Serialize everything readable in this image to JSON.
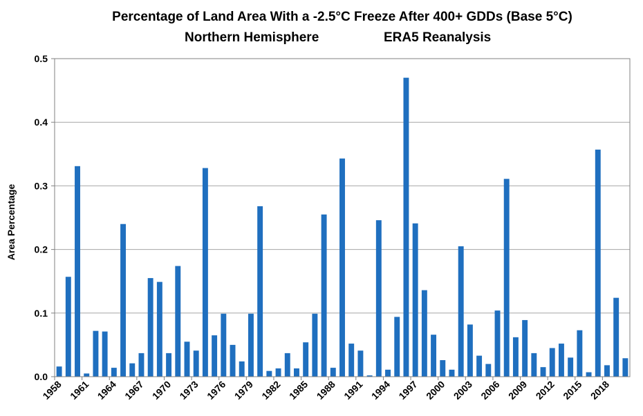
{
  "chart_data": {
    "type": "bar",
    "title": "Percentage of Land Area With a -2.5°C Freeze After 400+ GDDs (Base 5°C)",
    "subtitle_left": "Northern Hemisphere",
    "subtitle_right": "ERA5 Reanalysis",
    "xlabel": "",
    "ylabel": "Area Percentage",
    "ylim": [
      0,
      0.5
    ],
    "yticks": [
      "0.0",
      "0.1",
      "0.2",
      "0.3",
      "0.4",
      "0.5"
    ],
    "grid": true,
    "bar_color": "#1f6fbf",
    "x": [
      1958,
      1959,
      1960,
      1961,
      1962,
      1963,
      1964,
      1965,
      1966,
      1967,
      1968,
      1969,
      1970,
      1971,
      1972,
      1973,
      1974,
      1975,
      1976,
      1977,
      1978,
      1979,
      1980,
      1981,
      1982,
      1983,
      1984,
      1985,
      1986,
      1987,
      1988,
      1989,
      1990,
      1991,
      1992,
      1993,
      1994,
      1995,
      1996,
      1997,
      1998,
      1999,
      2000,
      2001,
      2002,
      2003,
      2004,
      2005,
      2006,
      2007,
      2008,
      2009,
      2010,
      2011,
      2012,
      2013,
      2014,
      2015,
      2016,
      2017,
      2018,
      2019,
      2020
    ],
    "xtick_labels": [
      "1958",
      "1961",
      "1964",
      "1967",
      "1970",
      "1973",
      "1976",
      "1979",
      "1982",
      "1985",
      "1988",
      "1991",
      "1994",
      "1997",
      "2000",
      "2003",
      "2006",
      "2009",
      "2012",
      "2015",
      "2018"
    ],
    "values": [
      0.016,
      0.157,
      0.331,
      0.005,
      0.072,
      0.071,
      0.014,
      0.24,
      0.021,
      0.037,
      0.155,
      0.149,
      0.037,
      0.174,
      0.055,
      0.041,
      0.328,
      0.065,
      0.099,
      0.05,
      0.024,
      0.099,
      0.268,
      0.009,
      0.013,
      0.037,
      0.013,
      0.054,
      0.099,
      0.255,
      0.014,
      0.343,
      0.052,
      0.041,
      0.002,
      0.246,
      0.011,
      0.094,
      0.47,
      0.241,
      0.136,
      0.066,
      0.026,
      0.011,
      0.205,
      0.082,
      0.033,
      0.02,
      0.104,
      0.311,
      0.062,
      0.089,
      0.037,
      0.015,
      0.045,
      0.052,
      0.03,
      0.073,
      0.007,
      0.357,
      0.018,
      0.124,
      0.029
    ]
  }
}
